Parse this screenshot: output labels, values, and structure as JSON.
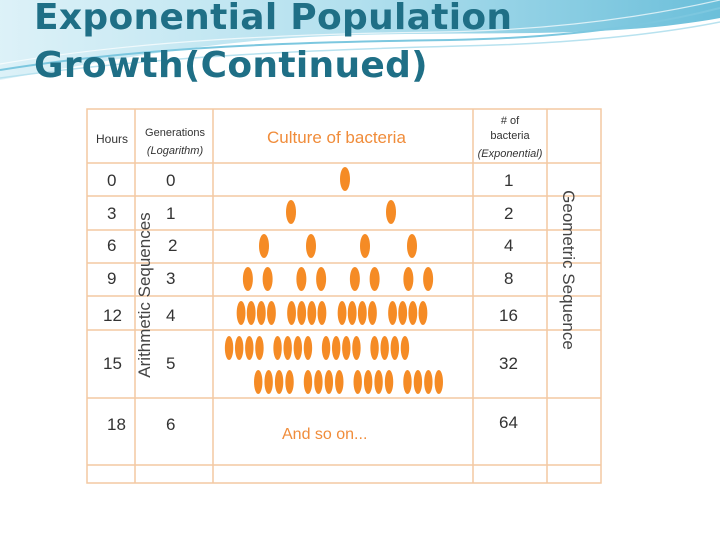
{
  "slide": {
    "title_line1": "Exponential Population",
    "title_line2": "Growth(Continued)"
  },
  "colors": {
    "title": "#1f6f86",
    "accent_orange": "#f08c3a",
    "bacteria": "#f58b25",
    "grid_lines": "#f3c9a2"
  },
  "table": {
    "headers": {
      "hours": "Hours",
      "generations": "Generations",
      "generations_sub": "(Logarithm)",
      "culture": "Culture of bacteria",
      "count_line1": "# of",
      "count_line2": "bacteria",
      "count_sub": "(Exponential)"
    },
    "rows": [
      {
        "hours": "0",
        "generations": "0",
        "count": "1",
        "bacteria_shown": 1
      },
      {
        "hours": "3",
        "generations": "1",
        "count": "2",
        "bacteria_shown": 2
      },
      {
        "hours": "6",
        "generations": "2",
        "count": "4",
        "bacteria_shown": 4
      },
      {
        "hours": "9",
        "generations": "3",
        "count": "8",
        "bacteria_shown": 8
      },
      {
        "hours": "12",
        "generations": "4",
        "count": "16",
        "bacteria_shown": 16
      },
      {
        "hours": "15",
        "generations": "5",
        "count": "32",
        "bacteria_shown": 32
      },
      {
        "hours": "18",
        "generations": "6",
        "count": "64",
        "bacteria_shown": 0
      }
    ],
    "and_so_on": "And so on...",
    "left_vertical_label": "Arithmetic Sequences",
    "right_vertical_label": "Geometric Sequence"
  }
}
